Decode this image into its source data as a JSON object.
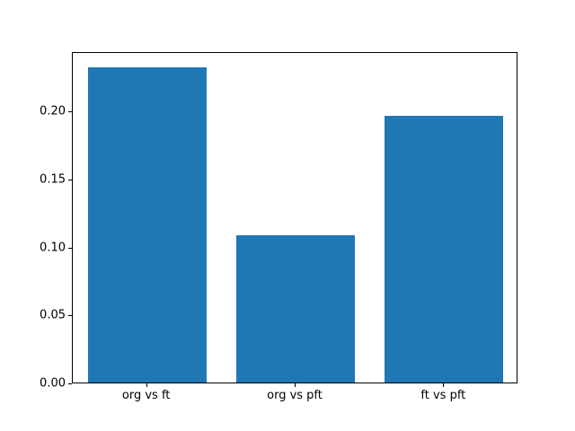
{
  "figure": {
    "background": "#ffffff",
    "spine_color": "#000000"
  },
  "chart_data": {
    "type": "bar",
    "title": "",
    "xlabel": "",
    "ylabel": "",
    "categories": [
      "org vs ft",
      "org vs pft",
      "ft vs pft"
    ],
    "values": [
      0.232,
      0.108,
      0.196
    ],
    "bar_color": "#1f77b4",
    "bar_width_fraction": 0.8,
    "ylim": [
      0,
      0.2436
    ],
    "yticks": [
      0.0,
      0.05,
      0.1,
      0.15,
      0.2
    ],
    "ytick_labels": [
      "0.00",
      "0.05",
      "0.10",
      "0.15",
      "0.20"
    ],
    "grid": false,
    "legend_position": "none"
  }
}
